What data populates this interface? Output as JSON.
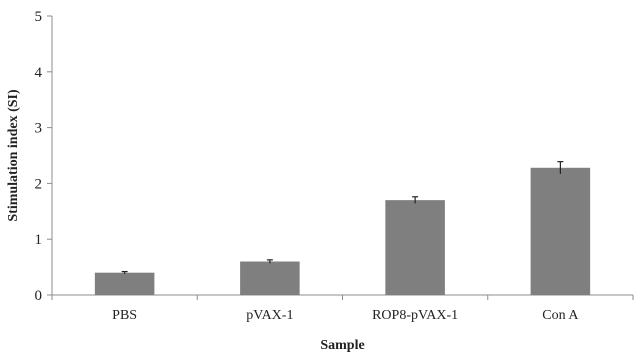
{
  "chart_data": {
    "type": "bar",
    "categories": [
      "PBS",
      "pVAX-1",
      "ROP8-pVAX-1",
      "Con A"
    ],
    "values": [
      0.4,
      0.6,
      1.7,
      2.28
    ],
    "errors": [
      0.02,
      0.03,
      0.06,
      0.11
    ],
    "xlabel": "Sample",
    "ylabel": "Stimulation index (SI)",
    "ylim": [
      0,
      5
    ],
    "yticks": [
      "0",
      "1",
      "2",
      "3",
      "4",
      "5"
    ],
    "bar_color": "#7f7f7f",
    "grid": false,
    "legend": "none"
  }
}
